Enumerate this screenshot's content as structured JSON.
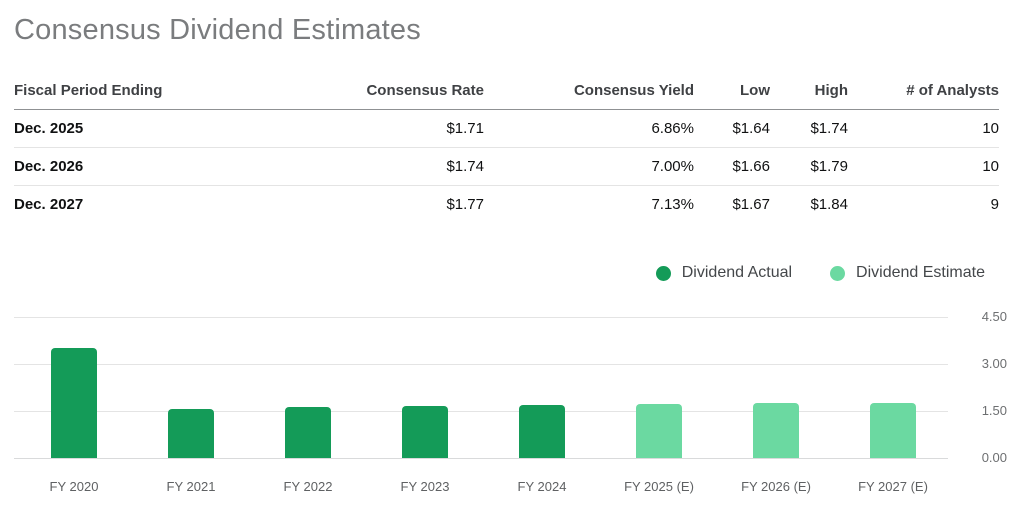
{
  "title": "Consensus Dividend Estimates",
  "table": {
    "columns": [
      "Fiscal Period Ending",
      "Consensus Rate",
      "Consensus Yield",
      "Low",
      "High",
      "# of Analysts"
    ],
    "rows": [
      {
        "period": "Dec. 2025",
        "rate": "$1.71",
        "yield": "6.86%",
        "low": "$1.64",
        "high": "$1.74",
        "analysts": "10"
      },
      {
        "period": "Dec. 2026",
        "rate": "$1.74",
        "yield": "7.00%",
        "low": "$1.66",
        "high": "$1.79",
        "analysts": "10"
      },
      {
        "period": "Dec. 2027",
        "rate": "$1.77",
        "yield": "7.13%",
        "low": "$1.67",
        "high": "$1.84",
        "analysts": "9"
      }
    ]
  },
  "legend": [
    {
      "label": "Dividend Actual",
      "color": "#149b58"
    },
    {
      "label": "Dividend Estimate",
      "color": "#6bd9a1"
    }
  ],
  "colors": {
    "dividend_actual": "#149b58",
    "dividend_estimate": "#6bd9a1",
    "title_text": "#7a7c7e",
    "gridline": "#e4e4e4"
  },
  "chart_data": {
    "type": "bar",
    "title": "",
    "xlabel": "",
    "ylabel": "",
    "categories": [
      "FY 2020",
      "FY 2021",
      "FY 2022",
      "FY 2023",
      "FY 2024",
      "FY 2025 (E)",
      "FY 2026 (E)",
      "FY 2027 (E)"
    ],
    "series": [
      {
        "name": "Dividend Actual",
        "color": "#149b58",
        "values": [
          3.5,
          1.57,
          1.62,
          1.65,
          1.68,
          null,
          null,
          null
        ]
      },
      {
        "name": "Dividend Estimate",
        "color": "#6bd9a1",
        "values": [
          null,
          null,
          null,
          null,
          null,
          1.71,
          1.74,
          1.77
        ]
      }
    ],
    "ylim": [
      0,
      4.5
    ],
    "yticks": [
      "4.50",
      "3.00",
      "1.50",
      "0.00"
    ],
    "ytick_values": [
      4.5,
      3.0,
      1.5,
      0.0
    ],
    "grid": true,
    "legend_position": "top-right"
  }
}
